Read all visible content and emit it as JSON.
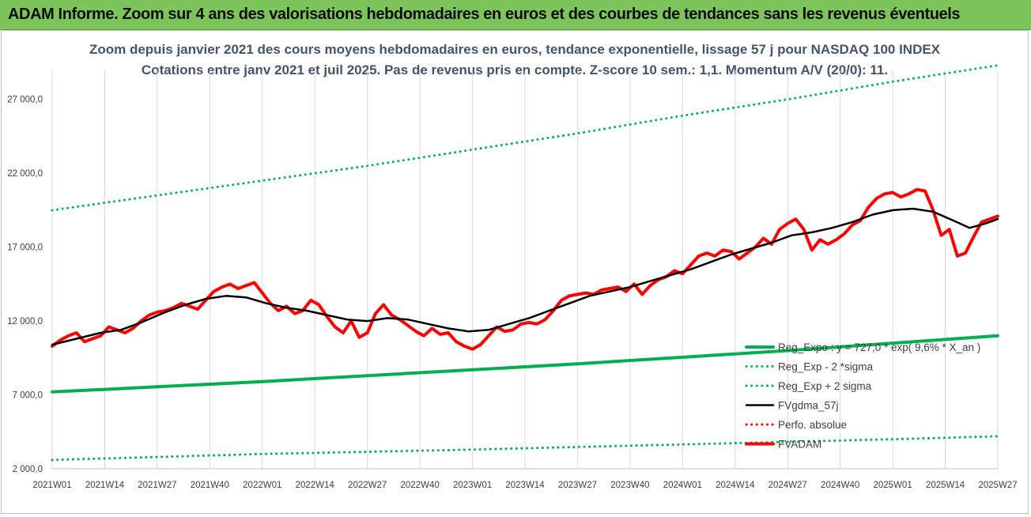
{
  "banner": {
    "title": "ADAM Informe. Zoom sur 4 ans des valorisations hebdomadaires en euros et des courbes de tendances sans les revenus éventuels",
    "background": "#7dc55a"
  },
  "chart_data": {
    "type": "line",
    "title_lines": [
      "Zoom depuis janvier 2021 des cours moyens hebdomadaires en euros, tendance exponentielle, lissage 57 j pour NASDAQ 100 INDEX",
      "Cotations entre janv 2021 et juil 2025. Pas de revenus pris en compte. Z-score 10 sem.: 1,1. Momentum A/V (20/0): 11."
    ],
    "xlabel": "",
    "ylabel": "",
    "ylim": [
      2000,
      29500
    ],
    "y_ticks": [
      "2000,0",
      "7000,0",
      "12000,0",
      "17000,0",
      "22000,0",
      "27000,0"
    ],
    "y_tick_values": [
      2000,
      7000,
      12000,
      17000,
      22000,
      27000
    ],
    "x_range_weeks": [
      0,
      234
    ],
    "x_ticks": [
      {
        "label": "2021W01",
        "week": 0
      },
      {
        "label": "2021W14",
        "week": 13
      },
      {
        "label": "2021W27",
        "week": 26
      },
      {
        "label": "2021W40",
        "week": 39
      },
      {
        "label": "2022W01",
        "week": 52
      },
      {
        "label": "2022W14",
        "week": 65
      },
      {
        "label": "2022W27",
        "week": 78
      },
      {
        "label": "2022W40",
        "week": 91
      },
      {
        "label": "2023W01",
        "week": 104
      },
      {
        "label": "2023W14",
        "week": 117
      },
      {
        "label": "2023W27",
        "week": 130
      },
      {
        "label": "2023W40",
        "week": 143
      },
      {
        "label": "2024W01",
        "week": 156
      },
      {
        "label": "2024W14",
        "week": 169
      },
      {
        "label": "2024W27",
        "week": 182
      },
      {
        "label": "2024W40",
        "week": 195
      },
      {
        "label": "2025W01",
        "week": 208
      },
      {
        "label": "2025W14",
        "week": 221
      },
      {
        "label": "2025W27",
        "week": 234
      }
    ],
    "grid": "vertical",
    "legend_position": "bottom-right",
    "series": [
      {
        "name": "Reg_Expo : y = 727,0 * exp( 9,6% * X_an )",
        "color": "#00b050",
        "style": "solid-thick",
        "points": [
          [
            0,
            7200
          ],
          [
            26,
            7550
          ],
          [
            52,
            7900
          ],
          [
            78,
            8300
          ],
          [
            104,
            8700
          ],
          [
            130,
            9100
          ],
          [
            156,
            9550
          ],
          [
            182,
            10000
          ],
          [
            208,
            10500
          ],
          [
            234,
            11000
          ]
        ]
      },
      {
        "name": "Reg_Exp - 2 *sigma",
        "color": "#00b050",
        "style": "dotted",
        "points": [
          [
            0,
            2600
          ],
          [
            52,
            3000
          ],
          [
            104,
            3300
          ],
          [
            156,
            3650
          ],
          [
            208,
            4000
          ],
          [
            234,
            4200
          ]
        ]
      },
      {
        "name": "Reg_Exp + 2 sigma",
        "color": "#00b050",
        "style": "dotted",
        "points": [
          [
            0,
            19500
          ],
          [
            26,
            20500
          ],
          [
            52,
            21500
          ],
          [
            78,
            22500
          ],
          [
            104,
            23600
          ],
          [
            130,
            24700
          ],
          [
            156,
            25900
          ],
          [
            182,
            27000
          ],
          [
            208,
            28200
          ],
          [
            234,
            29300
          ]
        ]
      },
      {
        "name": "FVgdma_57j",
        "color": "#000000",
        "style": "solid",
        "points": [
          [
            0,
            10400
          ],
          [
            6,
            10800
          ],
          [
            12,
            11200
          ],
          [
            17,
            11400
          ],
          [
            22,
            11900
          ],
          [
            28,
            12600
          ],
          [
            33,
            13100
          ],
          [
            38,
            13500
          ],
          [
            43,
            13700
          ],
          [
            48,
            13600
          ],
          [
            53,
            13200
          ],
          [
            58,
            12900
          ],
          [
            63,
            12700
          ],
          [
            68,
            12400
          ],
          [
            73,
            12100
          ],
          [
            78,
            12000
          ],
          [
            83,
            12200
          ],
          [
            88,
            12100
          ],
          [
            93,
            11800
          ],
          [
            98,
            11500
          ],
          [
            103,
            11300
          ],
          [
            108,
            11400
          ],
          [
            113,
            11800
          ],
          [
            118,
            12200
          ],
          [
            123,
            12700
          ],
          [
            128,
            13200
          ],
          [
            133,
            13700
          ],
          [
            138,
            14000
          ],
          [
            143,
            14300
          ],
          [
            148,
            14700
          ],
          [
            153,
            15100
          ],
          [
            158,
            15500
          ],
          [
            163,
            16000
          ],
          [
            168,
            16500
          ],
          [
            173,
            16900
          ],
          [
            178,
            17300
          ],
          [
            183,
            17800
          ],
          [
            188,
            18000
          ],
          [
            193,
            18300
          ],
          [
            198,
            18700
          ],
          [
            203,
            19200
          ],
          [
            208,
            19500
          ],
          [
            213,
            19600
          ],
          [
            218,
            19400
          ],
          [
            223,
            18800
          ],
          [
            227,
            18300
          ],
          [
            231,
            18600
          ],
          [
            234,
            18900
          ]
        ]
      },
      {
        "name": "Perfo. absolue",
        "color": "#ff0000",
        "style": "dotted",
        "points": []
      },
      {
        "name": "FVADAM",
        "color": "#ff0000",
        "style": "solid-thick",
        "points": [
          [
            0,
            10300
          ],
          [
            2,
            10700
          ],
          [
            4,
            11000
          ],
          [
            6,
            11200
          ],
          [
            8,
            10600
          ],
          [
            10,
            10800
          ],
          [
            12,
            11000
          ],
          [
            14,
            11600
          ],
          [
            16,
            11400
          ],
          [
            18,
            11200
          ],
          [
            20,
            11500
          ],
          [
            22,
            12000
          ],
          [
            24,
            12400
          ],
          [
            26,
            12600
          ],
          [
            28,
            12700
          ],
          [
            30,
            12900
          ],
          [
            32,
            13200
          ],
          [
            34,
            13000
          ],
          [
            36,
            12800
          ],
          [
            38,
            13400
          ],
          [
            40,
            14000
          ],
          [
            42,
            14300
          ],
          [
            44,
            14500
          ],
          [
            46,
            14200
          ],
          [
            48,
            14400
          ],
          [
            50,
            14600
          ],
          [
            52,
            13900
          ],
          [
            54,
            13200
          ],
          [
            56,
            12700
          ],
          [
            58,
            13000
          ],
          [
            60,
            12500
          ],
          [
            62,
            12700
          ],
          [
            64,
            13400
          ],
          [
            66,
            13100
          ],
          [
            68,
            12300
          ],
          [
            70,
            11600
          ],
          [
            72,
            11200
          ],
          [
            74,
            12000
          ],
          [
            76,
            10900
          ],
          [
            78,
            11200
          ],
          [
            80,
            12500
          ],
          [
            82,
            13100
          ],
          [
            84,
            12400
          ],
          [
            86,
            12100
          ],
          [
            88,
            11700
          ],
          [
            90,
            11300
          ],
          [
            92,
            11000
          ],
          [
            94,
            11500
          ],
          [
            96,
            11100
          ],
          [
            98,
            11200
          ],
          [
            100,
            10600
          ],
          [
            102,
            10300
          ],
          [
            104,
            10100
          ],
          [
            106,
            10400
          ],
          [
            108,
            11000
          ],
          [
            110,
            11600
          ],
          [
            112,
            11300
          ],
          [
            114,
            11400
          ],
          [
            116,
            11800
          ],
          [
            118,
            11900
          ],
          [
            120,
            11800
          ],
          [
            122,
            12100
          ],
          [
            124,
            12700
          ],
          [
            126,
            13400
          ],
          [
            128,
            13700
          ],
          [
            130,
            13800
          ],
          [
            132,
            13900
          ],
          [
            134,
            13800
          ],
          [
            136,
            14100
          ],
          [
            138,
            14200
          ],
          [
            140,
            14300
          ],
          [
            142,
            14000
          ],
          [
            144,
            14500
          ],
          [
            146,
            13800
          ],
          [
            148,
            14400
          ],
          [
            150,
            14800
          ],
          [
            152,
            15000
          ],
          [
            154,
            15400
          ],
          [
            156,
            15200
          ],
          [
            158,
            15800
          ],
          [
            160,
            16400
          ],
          [
            162,
            16600
          ],
          [
            164,
            16400
          ],
          [
            166,
            16800
          ],
          [
            168,
            16700
          ],
          [
            170,
            16200
          ],
          [
            172,
            16600
          ],
          [
            174,
            17000
          ],
          [
            176,
            17600
          ],
          [
            178,
            17200
          ],
          [
            180,
            18200
          ],
          [
            182,
            18600
          ],
          [
            184,
            18900
          ],
          [
            186,
            18200
          ],
          [
            188,
            16800
          ],
          [
            190,
            17500
          ],
          [
            192,
            17200
          ],
          [
            194,
            17500
          ],
          [
            196,
            17900
          ],
          [
            198,
            18500
          ],
          [
            200,
            18800
          ],
          [
            202,
            19700
          ],
          [
            204,
            20300
          ],
          [
            206,
            20600
          ],
          [
            208,
            20700
          ],
          [
            210,
            20400
          ],
          [
            212,
            20600
          ],
          [
            214,
            20900
          ],
          [
            216,
            20800
          ],
          [
            218,
            19500
          ],
          [
            220,
            17800
          ],
          [
            222,
            18200
          ],
          [
            224,
            16400
          ],
          [
            226,
            16600
          ],
          [
            228,
            17700
          ],
          [
            230,
            18700
          ],
          [
            232,
            18900
          ],
          [
            234,
            19100
          ]
        ]
      }
    ]
  }
}
